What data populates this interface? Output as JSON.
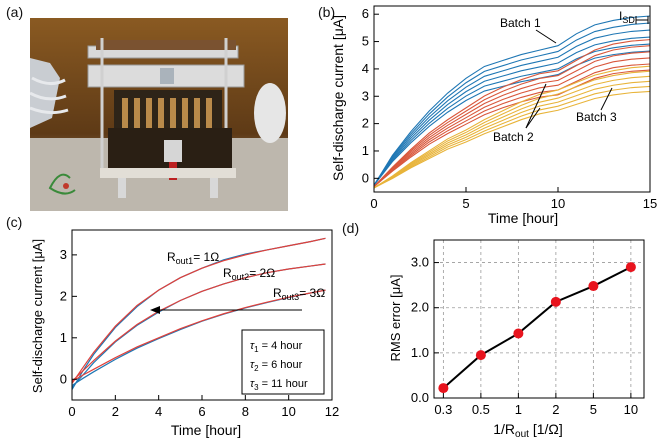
{
  "panels": {
    "a": "(a)",
    "b": "(b)",
    "c": "(c)",
    "d": "(d)"
  },
  "chart_data": [
    {
      "panel": "b",
      "type": "line",
      "xlabel": "Time [hour]",
      "ylabel": "Self-discharge current [μA]",
      "xlim": [
        0,
        15
      ],
      "ylim": [
        -0.5,
        6.3
      ],
      "xticks": [
        0,
        5,
        10,
        15
      ],
      "yticks": [
        0,
        1,
        2,
        3,
        4,
        5,
        6
      ],
      "grid": false,
      "annotations": [
        "Batch 1",
        "Batch 2",
        "Batch 3"
      ],
      "isd_label": {
        "main": "I",
        "sub": "SD"
      },
      "series": [
        {
          "group": "Batch 1",
          "color": "#1f77b4",
          "x": [
            0,
            1,
            2,
            3,
            4,
            5,
            6,
            7,
            8,
            9,
            10,
            11,
            12,
            13,
            14,
            15
          ],
          "y": [
            -0.25,
            0.75,
            1.55,
            2.25,
            2.85,
            3.35,
            3.75,
            3.95,
            4.15,
            4.3,
            4.45,
            4.85,
            5.15,
            5.3,
            5.4,
            5.45
          ],
          "members": 6
        },
        {
          "group": "Batch 2",
          "color": "#d9573b",
          "x": [
            0,
            1,
            2,
            3,
            4,
            5,
            6,
            7,
            8,
            9,
            10,
            11,
            12,
            13,
            14,
            15
          ],
          "y": [
            -0.3,
            0.35,
            0.95,
            1.5,
            1.95,
            2.35,
            2.75,
            3.05,
            3.3,
            3.5,
            3.6,
            3.95,
            4.3,
            4.5,
            4.6,
            4.65
          ],
          "members": 6
        },
        {
          "group": "Batch 3",
          "color": "#e8b43a",
          "x": [
            0,
            1,
            2,
            3,
            4,
            5,
            6,
            7,
            8,
            9,
            10,
            11,
            12,
            13,
            14,
            15
          ],
          "y": [
            -0.35,
            0.05,
            0.5,
            0.9,
            1.3,
            1.6,
            1.95,
            2.25,
            2.55,
            2.8,
            2.95,
            3.2,
            3.45,
            3.6,
            3.7,
            3.75
          ],
          "members": 6
        }
      ]
    },
    {
      "panel": "c",
      "type": "line",
      "xlabel": "Time [hour]",
      "ylabel": "Self-discharge current [μA]",
      "xlim": [
        0,
        12
      ],
      "ylim": [
        -0.5,
        3.6
      ],
      "xticks": [
        0,
        2,
        4,
        6,
        8,
        10,
        12
      ],
      "yticks": [
        0,
        1,
        2,
        3
      ],
      "grid": false,
      "curve_labels": [
        {
          "main": "R",
          "sub": "out1",
          "rest": "= 1Ω"
        },
        {
          "main": "R",
          "sub": "out2",
          "rest": "= 2Ω"
        },
        {
          "main": "R",
          "sub": "out3",
          "rest": "= 3Ω"
        }
      ],
      "legend": [
        "τ1 = 4 hour",
        "τ2 = 6 hour",
        "τ3 = 11 hour"
      ],
      "legend_parts": [
        {
          "sym": "τ",
          "sub": "1",
          "rest": " = 4 hour"
        },
        {
          "sym": "τ",
          "sub": "2",
          "rest": " = 6 hour"
        },
        {
          "sym": "τ",
          "sub": "3",
          "rest": " = 11 hour"
        }
      ],
      "series": [
        {
          "curve": "Rout1 measured",
          "color": "#1f77b4",
          "x": [
            0,
            0.5,
            1,
            2,
            3,
            4,
            5,
            6,
            7,
            8,
            9,
            10,
            11,
            11.7
          ],
          "y": [
            -0.25,
            0.2,
            0.6,
            1.25,
            1.75,
            2.15,
            2.45,
            2.68,
            2.88,
            3.02,
            3.12,
            3.22,
            3.32,
            3.4
          ]
        },
        {
          "curve": "Rout1 model",
          "color": "#e0403a",
          "x": [
            0,
            0.5,
            1,
            2,
            3,
            4,
            5,
            6,
            7,
            8,
            9,
            10,
            11,
            11.7
          ],
          "y": [
            -0.1,
            0.28,
            0.65,
            1.28,
            1.78,
            2.15,
            2.45,
            2.68,
            2.86,
            3.0,
            3.12,
            3.22,
            3.32,
            3.4
          ]
        },
        {
          "curve": "Rout2 measured",
          "color": "#1f77b4",
          "x": [
            0,
            0.5,
            1,
            2,
            3,
            4,
            5,
            6,
            7,
            8,
            9,
            10,
            11,
            11.7
          ],
          "y": [
            -0.2,
            0.1,
            0.4,
            0.9,
            1.3,
            1.62,
            1.9,
            2.12,
            2.3,
            2.45,
            2.57,
            2.66,
            2.73,
            2.78
          ]
        },
        {
          "curve": "Rout2 model",
          "color": "#e0403a",
          "x": [
            0,
            0.5,
            1,
            2,
            3,
            4,
            5,
            6,
            7,
            8,
            9,
            10,
            11,
            11.7
          ],
          "y": [
            -0.05,
            0.2,
            0.45,
            0.92,
            1.32,
            1.64,
            1.9,
            2.12,
            2.3,
            2.45,
            2.57,
            2.66,
            2.73,
            2.78
          ]
        },
        {
          "curve": "Rout3 measured",
          "color": "#1f77b4",
          "x": [
            0,
            0.5,
            1,
            2,
            3,
            4,
            5,
            6,
            7,
            8,
            9,
            10,
            11,
            11.7
          ],
          "y": [
            -0.15,
            0.02,
            0.18,
            0.48,
            0.75,
            0.98,
            1.2,
            1.4,
            1.57,
            1.72,
            1.85,
            1.97,
            2.08,
            2.15
          ]
        },
        {
          "curve": "Rout3 model",
          "color": "#e0403a",
          "x": [
            0,
            0.5,
            1,
            2,
            3,
            4,
            5,
            6,
            7,
            8,
            9,
            10,
            11,
            11.7
          ],
          "y": [
            -0.05,
            0.1,
            0.24,
            0.52,
            0.78,
            1.0,
            1.22,
            1.41,
            1.58,
            1.73,
            1.86,
            1.98,
            2.08,
            2.15
          ]
        }
      ]
    },
    {
      "panel": "d",
      "type": "scatter",
      "xlabel_main": "1/R",
      "xlabel_sub": "out",
      "xlabel_rest": " [1/Ω]",
      "ylabel": "RMS error [μA]",
      "categories": [
        "0.3",
        "0.5",
        "1",
        "2",
        "5",
        "10"
      ],
      "values": [
        0.22,
        0.95,
        1.43,
        2.13,
        2.48,
        2.9
      ],
      "ylim": [
        0,
        3.5
      ],
      "yticks": [
        "0.0",
        "1.0",
        "2.0",
        "3.0"
      ],
      "ytick_values": [
        0,
        1,
        2,
        3
      ],
      "grid": true,
      "marker_color": "#e8141e",
      "line_color": "#000000"
    }
  ]
}
